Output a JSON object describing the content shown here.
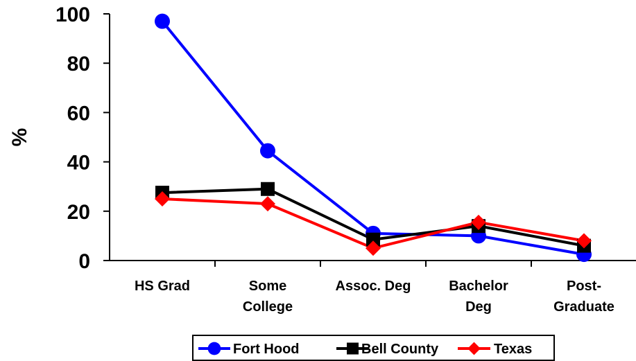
{
  "chart_data": {
    "type": "line",
    "title": "",
    "xlabel": "",
    "ylabel": "%",
    "ylim": [
      0,
      100
    ],
    "yticks": [
      0,
      20,
      40,
      60,
      80,
      100
    ],
    "categories": [
      [
        "HS Grad"
      ],
      [
        "Some",
        "College"
      ],
      [
        "Assoc. Deg"
      ],
      [
        "Bachelor",
        "Deg"
      ],
      [
        "Post-",
        "Graduate"
      ]
    ],
    "grid": false,
    "legend_position": "bottom",
    "series": [
      {
        "name": "Fort Hood",
        "color": "#0000ff",
        "marker": "circle",
        "values": [
          97,
          44.5,
          11,
          10,
          2.5
        ]
      },
      {
        "name": "Bell County",
        "color": "#000000",
        "marker": "square",
        "values": [
          27.5,
          29,
          8.5,
          14,
          6
        ]
      },
      {
        "name": "Texas",
        "color": "#ff0000",
        "marker": "diamond",
        "values": [
          25,
          23,
          5,
          15.5,
          8
        ]
      }
    ]
  }
}
